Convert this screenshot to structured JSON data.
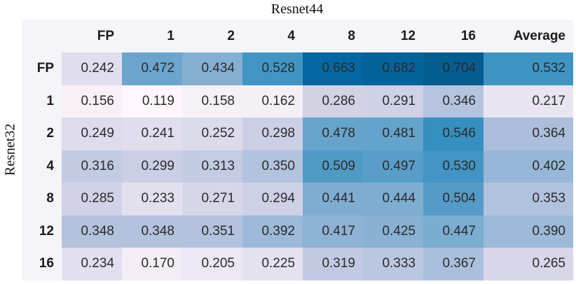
{
  "chart_data": {
    "type": "heatmap",
    "title": "Resnet44",
    "ylabel": "Resnet32",
    "col_headers": [
      "FP",
      "1",
      "2",
      "4",
      "8",
      "12",
      "16",
      "Average"
    ],
    "row_headers": [
      "FP",
      "1",
      "2",
      "4",
      "8",
      "12",
      "16"
    ],
    "rows": [
      [
        0.242,
        0.472,
        0.434,
        0.528,
        0.663,
        0.682,
        0.704,
        0.532
      ],
      [
        0.156,
        0.119,
        0.158,
        0.162,
        0.286,
        0.291,
        0.346,
        0.217
      ],
      [
        0.249,
        0.241,
        0.252,
        0.298,
        0.478,
        0.481,
        0.546,
        0.364
      ],
      [
        0.316,
        0.299,
        0.313,
        0.35,
        0.509,
        0.497,
        0.53,
        0.402
      ],
      [
        0.285,
        0.233,
        0.271,
        0.294,
        0.441,
        0.444,
        0.504,
        0.353
      ],
      [
        0.348,
        0.348,
        0.351,
        0.392,
        0.417,
        0.425,
        0.447,
        0.39
      ],
      [
        0.234,
        0.17,
        0.205,
        0.225,
        0.319,
        0.333,
        0.367,
        0.265
      ]
    ],
    "decimals": 3,
    "value_range": [
      0.119,
      0.704
    ],
    "grid": false,
    "legend": "none",
    "colormap": {
      "name": "PuBu",
      "vmin": 0.119,
      "vmax": 0.8,
      "stops": [
        [
          0.0,
          "#fff7fb"
        ],
        [
          0.125,
          "#ece7f2"
        ],
        [
          0.25,
          "#d0d1e6"
        ],
        [
          0.375,
          "#a6bddb"
        ],
        [
          0.5,
          "#74a9cf"
        ],
        [
          0.625,
          "#3690c0"
        ],
        [
          0.75,
          "#0570b0"
        ],
        [
          0.875,
          "#045a8d"
        ],
        [
          1.0,
          "#023858"
        ]
      ]
    },
    "colors": {
      "background": "#ffffff",
      "header_bg": "#f5f4f8",
      "header_text": "#1a1a1a",
      "cell_text": "#2b2b2b"
    }
  }
}
